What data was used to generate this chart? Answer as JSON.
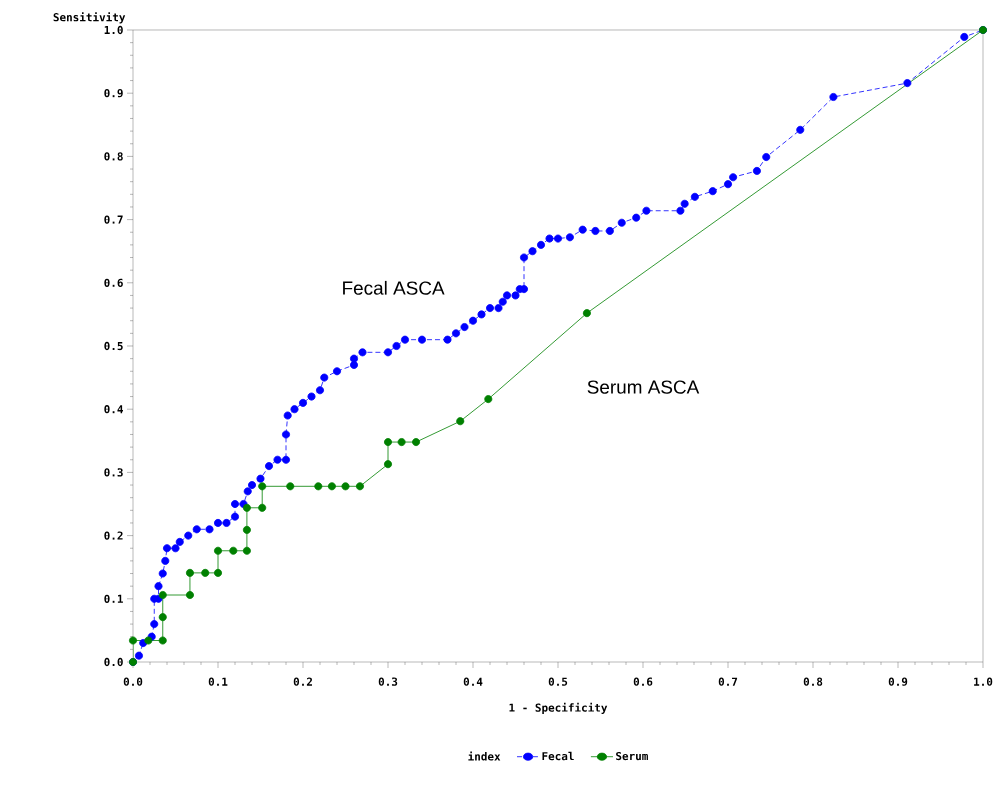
{
  "chart_data": {
    "type": "line",
    "xlabel": "1 - Specificity",
    "ylabel": "Sensitivity",
    "legend_title": "index",
    "xlim": [
      0,
      1
    ],
    "ylim": [
      0,
      1
    ],
    "xticks": [
      {
        "value": 0,
        "label": "0.0"
      },
      {
        "value": 0.1,
        "label": "0.1"
      },
      {
        "value": 0.2,
        "label": "0.2"
      },
      {
        "value": 0.3,
        "label": "0.3"
      },
      {
        "value": 0.4,
        "label": "0.4"
      },
      {
        "value": 0.5,
        "label": "0.5"
      },
      {
        "value": 0.6,
        "label": "0.6"
      },
      {
        "value": 0.7,
        "label": "0.7"
      },
      {
        "value": 0.8,
        "label": "0.8"
      },
      {
        "value": 0.9,
        "label": "0.9"
      },
      {
        "value": 1,
        "label": "1.0"
      }
    ],
    "yticks": [
      {
        "value": 0,
        "label": "0.0"
      },
      {
        "value": 0.1,
        "label": "0.1"
      },
      {
        "value": 0.2,
        "label": "0.2"
      },
      {
        "value": 0.3,
        "label": "0.3"
      },
      {
        "value": 0.4,
        "label": "0.4"
      },
      {
        "value": 0.5,
        "label": "0.5"
      },
      {
        "value": 0.6,
        "label": "0.6"
      },
      {
        "value": 0.7,
        "label": "0.7"
      },
      {
        "value": 0.8,
        "label": "0.8"
      },
      {
        "value": 0.9,
        "label": "0.9"
      },
      {
        "value": 1,
        "label": "1.0"
      }
    ],
    "marker": "circle",
    "legend": "bottom",
    "grid": false,
    "series": [
      {
        "name": "Fecal",
        "color": "#0000ff",
        "line_style": "dashed",
        "x": [
          0,
          0.007,
          0.012,
          0.022,
          0.025,
          0.025,
          0.03,
          0.03,
          0.035,
          0.038,
          0.04,
          0.05,
          0.055,
          0.065,
          0.075,
          0.09,
          0.1,
          0.11,
          0.12,
          0.12,
          0.13,
          0.135,
          0.14,
          0.15,
          0.16,
          0.17,
          0.18,
          0.18,
          0.182,
          0.19,
          0.2,
          0.21,
          0.22,
          0.225,
          0.24,
          0.26,
          0.26,
          0.27,
          0.3,
          0.31,
          0.32,
          0.34,
          0.37,
          0.38,
          0.39,
          0.4,
          0.41,
          0.42,
          0.43,
          0.435,
          0.44,
          0.45,
          0.455,
          0.46,
          0.46,
          0.47,
          0.48,
          0.49,
          0.5,
          0.514,
          0.529,
          0.544,
          0.561,
          0.575,
          0.592,
          0.604,
          0.644,
          0.649,
          0.661,
          0.682,
          0.7,
          0.706,
          0.734,
          0.745,
          0.785,
          0.824,
          0.911,
          0.978,
          1
        ],
        "values": [
          0,
          0.01,
          0.03,
          0.04,
          0.06,
          0.1,
          0.1,
          0.12,
          0.14,
          0.16,
          0.18,
          0.18,
          0.19,
          0.2,
          0.21,
          0.21,
          0.22,
          0.22,
          0.23,
          0.25,
          0.25,
          0.27,
          0.28,
          0.29,
          0.31,
          0.32,
          0.32,
          0.36,
          0.39,
          0.4,
          0.41,
          0.42,
          0.43,
          0.45,
          0.46,
          0.47,
          0.48,
          0.49,
          0.49,
          0.5,
          0.51,
          0.51,
          0.51,
          0.52,
          0.53,
          0.54,
          0.55,
          0.56,
          0.56,
          0.57,
          0.58,
          0.58,
          0.59,
          0.59,
          0.64,
          0.65,
          0.66,
          0.67,
          0.67,
          0.672,
          0.684,
          0.682,
          0.682,
          0.695,
          0.703,
          0.714,
          0.714,
          0.725,
          0.736,
          0.745,
          0.756,
          0.767,
          0.777,
          0.799,
          0.842,
          0.894,
          0.916,
          0.989,
          1
        ]
      },
      {
        "name": "Serum",
        "color": "#008000",
        "line_style": "solid",
        "x": [
          0,
          0,
          0.018,
          0.035,
          0.035,
          0.035,
          0.067,
          0.067,
          0.085,
          0.1,
          0.1,
          0.118,
          0.134,
          0.134,
          0.134,
          0.152,
          0.152,
          0.185,
          0.218,
          0.234,
          0.25,
          0.267,
          0.3,
          0.3,
          0.316,
          0.333,
          0.385,
          0.418,
          0.534,
          1
        ],
        "values": [
          0,
          0.034,
          0.034,
          0.034,
          0.071,
          0.106,
          0.106,
          0.141,
          0.141,
          0.141,
          0.176,
          0.176,
          0.176,
          0.209,
          0.244,
          0.244,
          0.278,
          0.278,
          0.278,
          0.278,
          0.278,
          0.278,
          0.313,
          0.348,
          0.348,
          0.348,
          0.381,
          0.416,
          0.552,
          1
        ]
      }
    ],
    "annotations": [
      "Fecal ASCA",
      "Serum ASCA"
    ]
  }
}
